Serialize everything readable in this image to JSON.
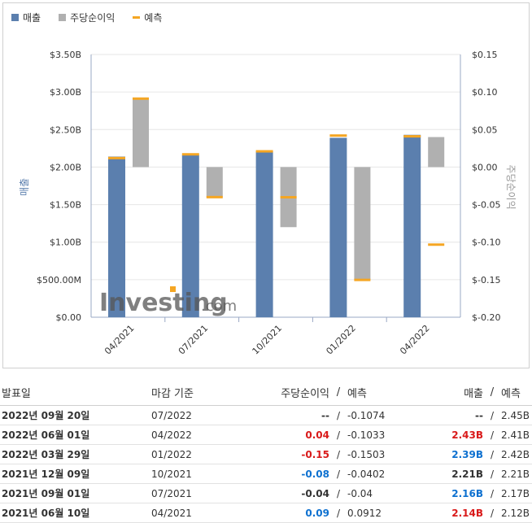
{
  "legend": [
    {
      "label": "매출",
      "color": "#5b7fae",
      "kind": "box"
    },
    {
      "label": "주당순이익",
      "color": "#b0b0b0",
      "kind": "box"
    },
    {
      "label": "예측",
      "color": "#f5a623",
      "kind": "line"
    }
  ],
  "colors": {
    "revenue": "#5b7fae",
    "eps": "#b0b0b0",
    "forecast": "#f5a623",
    "axis": "#9aa8c4",
    "grid": "#e6e6e6",
    "positive": "#0e71d0",
    "negative": "#d91a1a"
  },
  "chart_data": {
    "type": "bar",
    "categories": [
      "04/2021",
      "07/2021",
      "10/2021",
      "01/2022",
      "04/2022"
    ],
    "y_left": {
      "label": "매출",
      "ticks": [
        "$3.50B",
        "$3.00B",
        "$2.50B",
        "$2.00B",
        "$1.50B",
        "$1.00B",
        "$500.00M",
        "$0.00"
      ],
      "range": [
        0,
        3.5
      ]
    },
    "y_right": {
      "label": "주당순이익",
      "ticks": [
        "$0.15",
        "$0.10",
        "$0.05",
        "$0.00",
        "$-0.05",
        "$-0.10",
        "$-0.15",
        "$-0.20"
      ],
      "range": [
        -0.2,
        0.15
      ]
    },
    "series": [
      {
        "name": "매출",
        "axis": "left",
        "values": [
          2.14,
          2.16,
          2.21,
          2.39,
          2.43
        ],
        "forecast": [
          2.12,
          2.17,
          2.21,
          2.42,
          2.41
        ]
      },
      {
        "name": "주당순이익",
        "axis": "right",
        "values": [
          0.09,
          -0.04,
          -0.08,
          -0.15,
          0.04
        ],
        "forecast": [
          0.0912,
          -0.04,
          -0.0402,
          -0.1503,
          -0.1033
        ]
      }
    ]
  },
  "watermark": {
    "brand": "Investing",
    "suffix": ".com"
  },
  "table": {
    "headers": {
      "date": "발표일",
      "period": "마감 기준",
      "eps": "주당순이익",
      "eps_fc": "예측",
      "rev": "매출",
      "rev_fc": "예측",
      "sep": "/"
    },
    "rows": [
      {
        "date": "2022년 09월 20일",
        "period": "07/2022",
        "eps": "--",
        "eps_cls": "neutral",
        "eps_fc": "-0.1074",
        "rev": "--",
        "rev_cls": "neutral",
        "rev_fc": "2.45B"
      },
      {
        "date": "2022년 06월 01일",
        "period": "04/2022",
        "eps": "0.04",
        "eps_cls": "red",
        "eps_fc": "-0.1033",
        "rev": "2.43B",
        "rev_cls": "red",
        "rev_fc": "2.41B"
      },
      {
        "date": "2022년 03월 29일",
        "period": "01/2022",
        "eps": "-0.15",
        "eps_cls": "red",
        "eps_fc": "-0.1503",
        "rev": "2.39B",
        "rev_cls": "green",
        "rev_fc": "2.42B"
      },
      {
        "date": "2021년 12월 09일",
        "period": "10/2021",
        "eps": "-0.08",
        "eps_cls": "green",
        "eps_fc": "-0.0402",
        "rev": "2.21B",
        "rev_cls": "neutral",
        "rev_fc": "2.21B"
      },
      {
        "date": "2021년 09월 01일",
        "period": "07/2021",
        "eps": "-0.04",
        "eps_cls": "neutral",
        "eps_fc": "-0.04",
        "rev": "2.16B",
        "rev_cls": "green",
        "rev_fc": "2.17B"
      },
      {
        "date": "2021년 06월 10일",
        "period": "04/2021",
        "eps": "0.09",
        "eps_cls": "green",
        "eps_fc": "0.0912",
        "rev": "2.14B",
        "rev_cls": "red",
        "rev_fc": "2.12B"
      }
    ]
  }
}
